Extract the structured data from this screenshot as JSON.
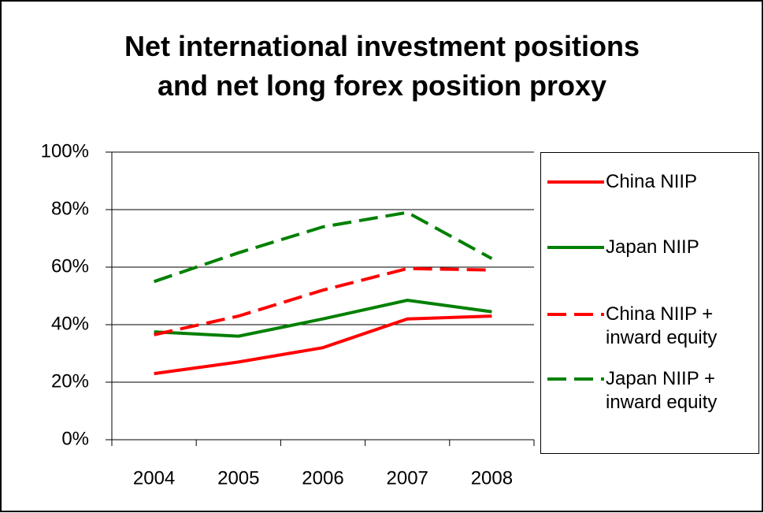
{
  "chart_data": {
    "type": "line",
    "title": "Net international investment positions and net long forex position proxy",
    "categories": [
      "2004",
      "2005",
      "2006",
      "2007",
      "2008"
    ],
    "series": [
      {
        "name": "China NIIP",
        "color": "#ff0000",
        "dashed": false,
        "values": [
          23,
          27,
          32,
          42,
          43
        ]
      },
      {
        "name": "Japan NIIP",
        "color": "#008000",
        "dashed": false,
        "values": [
          37.5,
          36,
          42,
          48.5,
          44.5
        ]
      },
      {
        "name": "China NIIP + inward equity",
        "color": "#ff0000",
        "dashed": true,
        "values": [
          36.5,
          43,
          52,
          59.5,
          59
        ]
      },
      {
        "name": "Japan NIIP + inward equity",
        "color": "#008000",
        "dashed": true,
        "values": [
          55,
          65,
          74,
          79,
          63
        ]
      }
    ],
    "ylim": [
      0,
      100
    ],
    "yticks": [
      {
        "value": 0,
        "label": "0%"
      },
      {
        "value": 20,
        "label": "20%"
      },
      {
        "value": 40,
        "label": "40%"
      },
      {
        "value": 60,
        "label": "60%"
      },
      {
        "value": 80,
        "label": "80%"
      },
      {
        "value": 100,
        "label": "100%"
      }
    ],
    "grid": true,
    "legend": "right"
  }
}
